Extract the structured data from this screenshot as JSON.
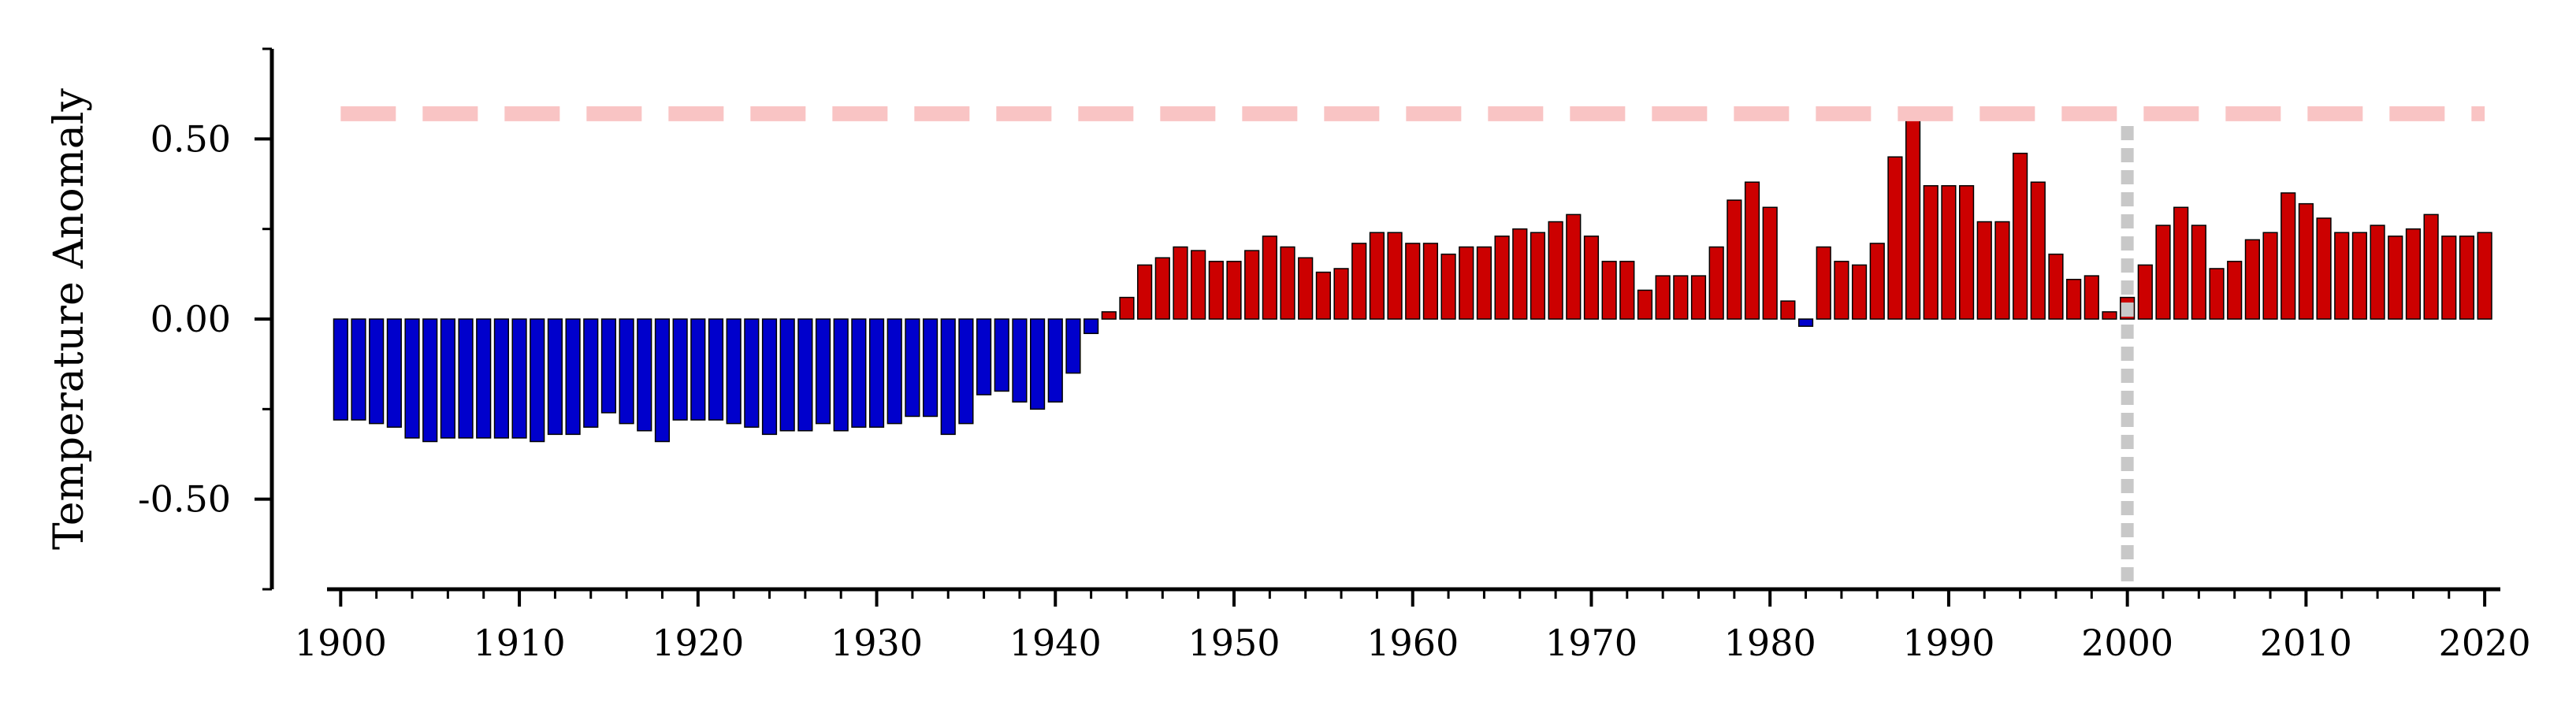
{
  "chart_data": {
    "type": "bar",
    "title": "",
    "xlabel": "",
    "ylabel": "Temperature Anomaly",
    "xlim": [
      1899.5,
      2020.7
    ],
    "ylim": [
      -0.75,
      0.75
    ],
    "x_ticks": [
      1900,
      1910,
      1920,
      1930,
      1940,
      1950,
      1960,
      1970,
      1980,
      1990,
      2000,
      2010,
      2020
    ],
    "y_ticks": [
      -0.5,
      0.0,
      0.5
    ],
    "y_tick_labels": [
      "-0.50",
      "0.00",
      "0.50"
    ],
    "grid": false,
    "legend": "none",
    "colors": {
      "negative": "#0000cc",
      "positive": "#cc0000",
      "bar_edge": "#000000",
      "reference_line": "#f9c4c4",
      "marker_line": "#c8c8c8"
    },
    "reference_line_y": 0.57,
    "marker_line_x": 2000,
    "x": [
      1900,
      1901,
      1902,
      1903,
      1904,
      1905,
      1906,
      1907,
      1908,
      1909,
      1910,
      1911,
      1912,
      1913,
      1914,
      1915,
      1916,
      1917,
      1918,
      1919,
      1920,
      1921,
      1922,
      1923,
      1924,
      1925,
      1926,
      1927,
      1928,
      1929,
      1930,
      1931,
      1932,
      1933,
      1934,
      1935,
      1936,
      1937,
      1938,
      1939,
      1940,
      1941,
      1942,
      1943,
      1944,
      1945,
      1946,
      1947,
      1948,
      1949,
      1950,
      1951,
      1952,
      1953,
      1954,
      1955,
      1956,
      1957,
      1958,
      1959,
      1960,
      1961,
      1962,
      1963,
      1964,
      1965,
      1966,
      1967,
      1968,
      1969,
      1970,
      1971,
      1972,
      1973,
      1974,
      1975,
      1976,
      1977,
      1978,
      1979,
      1980,
      1981,
      1982,
      1983,
      1984,
      1985,
      1986,
      1987,
      1988,
      1989,
      1990,
      1991,
      1992,
      1993,
      1994,
      1995,
      1996,
      1997,
      1998,
      1999,
      2000,
      2001,
      2002,
      2003,
      2004,
      2005,
      2006,
      2007,
      2008,
      2009,
      2010,
      2011,
      2012,
      2013,
      2014,
      2015,
      2016,
      2017,
      2018,
      2019,
      2020
    ],
    "values": [
      -0.28,
      -0.28,
      -0.29,
      -0.3,
      -0.33,
      -0.34,
      -0.33,
      -0.33,
      -0.33,
      -0.33,
      -0.33,
      -0.34,
      -0.32,
      -0.32,
      -0.3,
      -0.26,
      -0.29,
      -0.31,
      -0.34,
      -0.28,
      -0.28,
      -0.28,
      -0.29,
      -0.3,
      -0.32,
      -0.31,
      -0.31,
      -0.29,
      -0.31,
      -0.3,
      -0.3,
      -0.29,
      -0.27,
      -0.27,
      -0.32,
      -0.29,
      -0.21,
      -0.2,
      -0.23,
      -0.25,
      -0.23,
      -0.15,
      -0.04,
      0.02,
      0.06,
      0.15,
      0.17,
      0.2,
      0.19,
      0.16,
      0.16,
      0.19,
      0.23,
      0.2,
      0.17,
      0.13,
      0.14,
      0.21,
      0.24,
      0.24,
      0.21,
      0.21,
      0.18,
      0.2,
      0.2,
      0.23,
      0.25,
      0.24,
      0.27,
      0.29,
      0.23,
      0.16,
      0.16,
      0.08,
      0.12,
      0.12,
      0.12,
      0.2,
      0.33,
      0.38,
      0.31,
      0.05,
      -0.02,
      0.2,
      0.16,
      0.15,
      0.21,
      0.45,
      0.57,
      0.37,
      0.37,
      0.37,
      0.27,
      0.27,
      0.46,
      0.38,
      0.18,
      0.11,
      0.12,
      0.02,
      0.06,
      0.15,
      0.26,
      0.31,
      0.26,
      0.14,
      0.16,
      0.22,
      0.24,
      0.35,
      0.32,
      0.28,
      0.24,
      0.24,
      0.26,
      0.23,
      0.25,
      0.29,
      0.23,
      0.23,
      0.24
    ]
  }
}
